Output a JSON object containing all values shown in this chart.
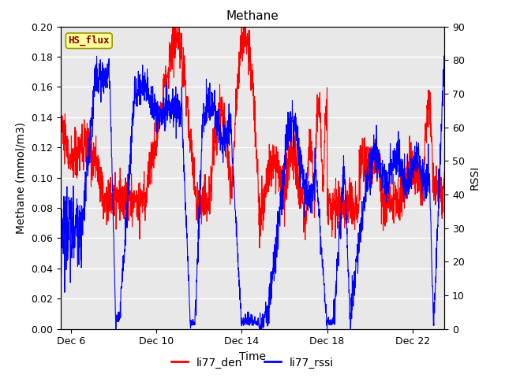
{
  "title": "Methane",
  "xlabel": "Time",
  "ylabel_left": "Methane (mmol/m3)",
  "ylabel_right": "RSSI",
  "ylim_left": [
    0.0,
    0.2
  ],
  "ylim_right": [
    0,
    90
  ],
  "yticks_left": [
    0.0,
    0.02,
    0.04,
    0.06,
    0.08,
    0.1,
    0.12,
    0.14,
    0.16,
    0.18,
    0.2
  ],
  "yticks_right": [
    0,
    10,
    20,
    30,
    40,
    50,
    60,
    70,
    80,
    90
  ],
  "xtick_labels": [
    "Dec 6",
    "Dec 10",
    "Dec 14",
    "Dec 18",
    "Dec 22"
  ],
  "xtick_positions": [
    6,
    10,
    14,
    18,
    22
  ],
  "xrange": [
    5.5,
    23.5
  ],
  "color_red": "#ff0000",
  "color_blue": "#0000ff",
  "legend_label_red": "li77_den",
  "legend_label_blue": "li77_rssi",
  "watermark_text": "HS_flux",
  "watermark_bg": "#ffff99",
  "watermark_border": "#999900",
  "watermark_fg": "#880000",
  "bg_color": "#e8e8e8",
  "grid_color": "#ffffff",
  "title_fontsize": 11,
  "axis_label_fontsize": 10,
  "tick_fontsize": 9,
  "legend_fontsize": 10
}
